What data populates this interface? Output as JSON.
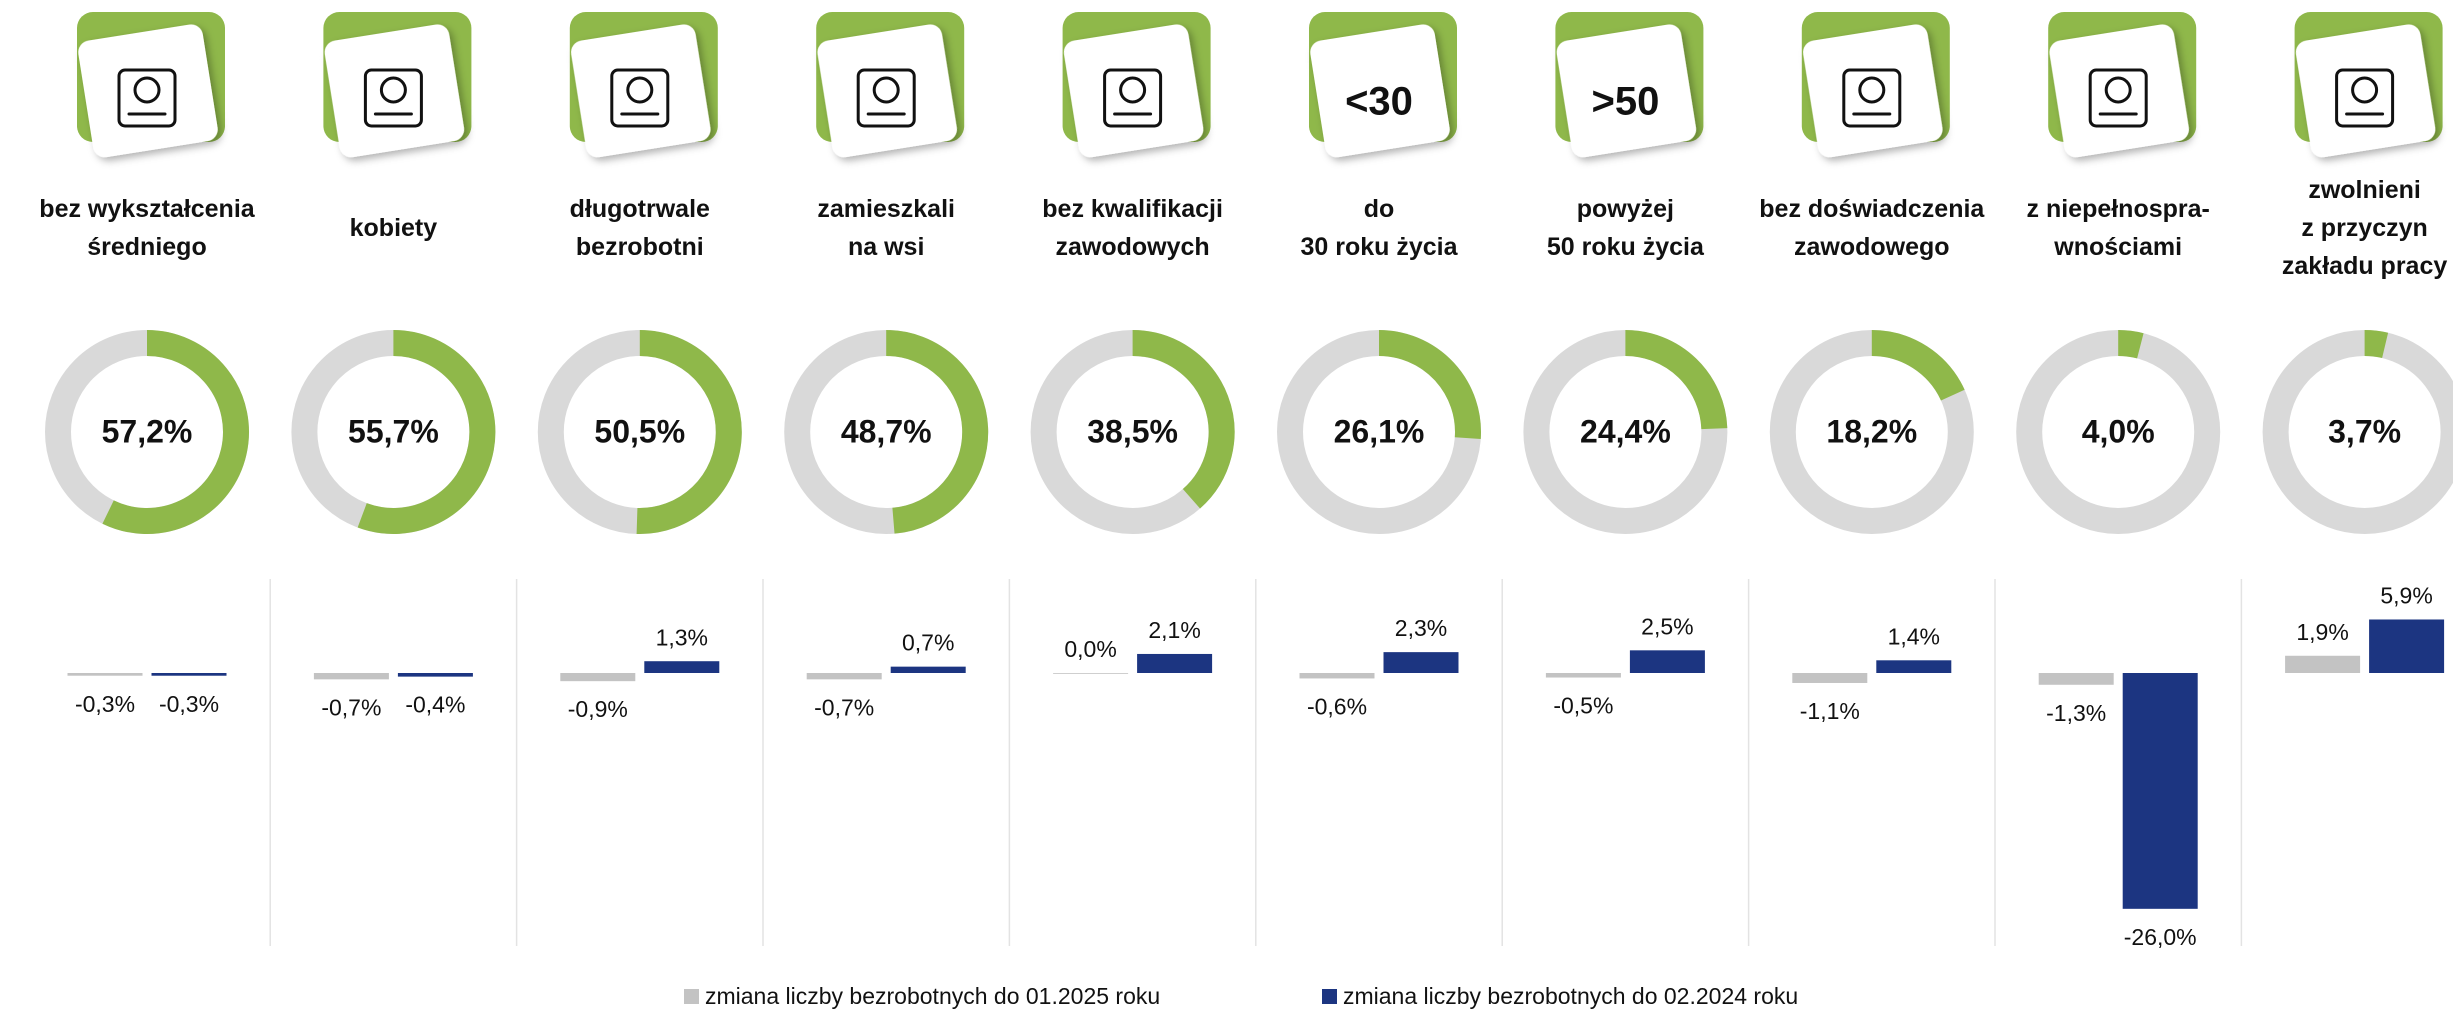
{
  "chart_data": [
    {
      "type": "donut",
      "categories": [
        "bez wykształcenia\nśredniego",
        "kobiety",
        "długotrwale\nbezrobotni",
        "zamieszkali\nna wsi",
        "bez kwalifikacji\nzawodowych",
        "do\n30 roku życia",
        "powyżej\n50 roku życia",
        "bez doświadczenia\nzawodowego",
        "z niepełnospra-\nwnościami",
        "zwolnieni\nz przyczyn\nzakładu pracy"
      ],
      "values": [
        57.2,
        55.7,
        50.5,
        48.7,
        38.5,
        26.1,
        24.4,
        18.2,
        4.0,
        3.7
      ],
      "value_labels": [
        "57,2%",
        "55,7%",
        "50,5%",
        "48,7%",
        "38,5%",
        "26,1%",
        "24,4%",
        "18,2%",
        "4,0%",
        "3,7%"
      ],
      "icon_texts": [
        null,
        null,
        null,
        null,
        null,
        "<30",
        ">50",
        null,
        null,
        null
      ],
      "color": "#8fb84a",
      "track_color": "#d9d9d9"
    },
    {
      "type": "bar",
      "series": [
        {
          "name": "zmiana liczby bezrobotnych do 01.2025 roku",
          "color": "#c3c3c3",
          "values": [
            -0.3,
            -0.7,
            -0.9,
            -0.7,
            0.0,
            -0.6,
            -0.5,
            -1.1,
            -1.3,
            1.9
          ],
          "value_labels": [
            "-0,3%",
            "-0,7%",
            "-0,9%",
            "-0,7%",
            "0,0%",
            "-0,6%",
            "-0,5%",
            "-1,1%",
            "-1,3%",
            "1,9%"
          ]
        },
        {
          "name": "zmiana liczby bezrobotnych do 02.2024 roku",
          "color": "#1c3581",
          "values": [
            -0.3,
            -0.4,
            1.3,
            0.7,
            2.1,
            2.3,
            2.5,
            1.4,
            -26.0,
            5.9
          ],
          "value_labels": [
            "-0,3%",
            "-0,4%",
            "1,3%",
            "0,7%",
            "2,1%",
            "2,3%",
            "2,5%",
            "1,4%",
            "-26,0%",
            "5,9%"
          ]
        }
      ]
    }
  ]
}
